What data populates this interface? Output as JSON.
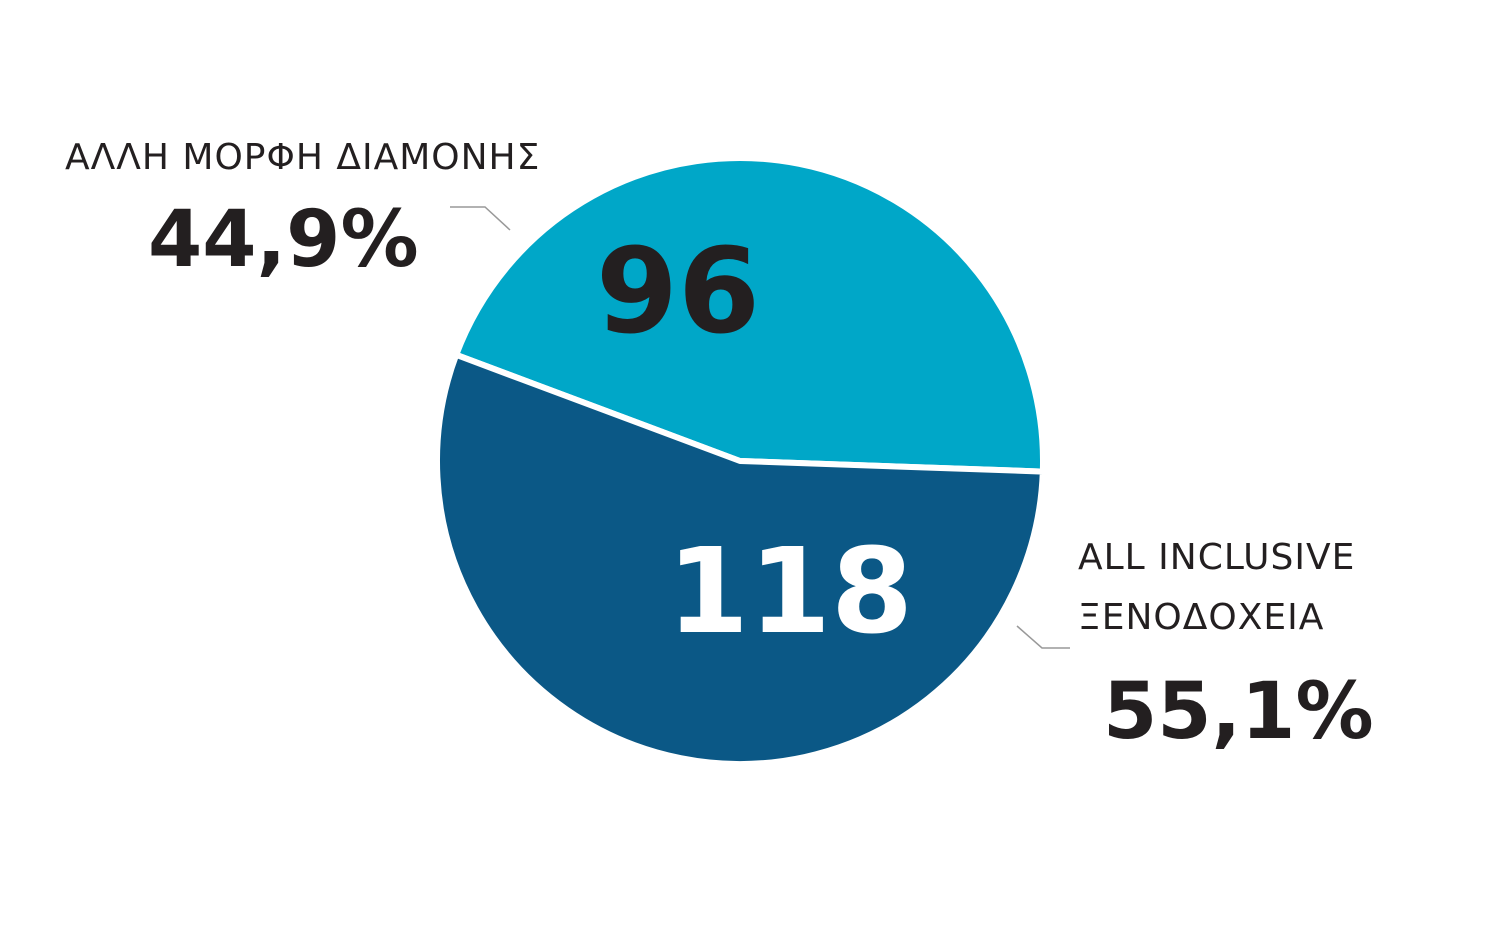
{
  "chart_data": {
    "type": "pie",
    "categories": [
      "ΑΛΛΗ ΜΟΡΦΗ ΔΙΑΜΟΝΗΣ",
      "ALL INCLUSIVE ΞΕΝΟΔΟΧΕΙΑ"
    ],
    "values": [
      96,
      118
    ],
    "colors": [
      "#00a7c8",
      "#0b5886"
    ],
    "value_label_colors": [
      "#231f20",
      "#ffffff"
    ],
    "shares": [
      44.9,
      55.1
    ],
    "share_labels": [
      "44,9%",
      "55,1%"
    ]
  }
}
